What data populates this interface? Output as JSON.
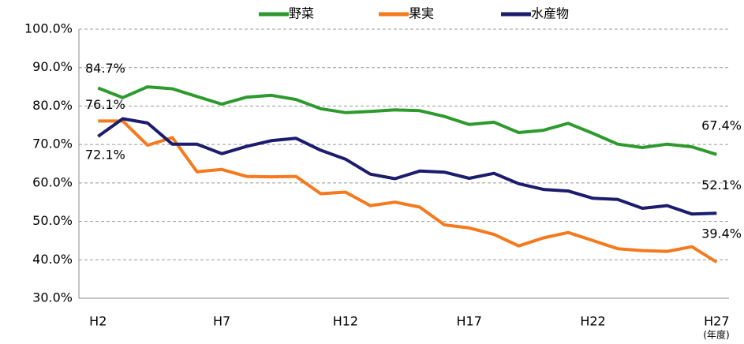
{
  "chart_data": {
    "type": "line",
    "categories": [
      "H2",
      null,
      null,
      null,
      null,
      "H7",
      null,
      null,
      null,
      null,
      "H12",
      null,
      null,
      null,
      null,
      "H17",
      null,
      null,
      null,
      null,
      "H22",
      null,
      null,
      null,
      null,
      "H27"
    ],
    "x_label": "(年度)",
    "ylim": [
      30,
      100
    ],
    "yticks": [
      {
        "value": 30,
        "label": "30.0%"
      },
      {
        "value": 40,
        "label": "40.0%"
      },
      {
        "value": 50,
        "label": "50.0%"
      },
      {
        "value": 60,
        "label": "60.0%"
      },
      {
        "value": 70,
        "label": "70.0%"
      },
      {
        "value": 80,
        "label": "80.0%"
      },
      {
        "value": 90,
        "label": "90.0%"
      },
      {
        "value": 100,
        "label": "100.0%"
      }
    ],
    "grid": true,
    "legend": "top",
    "series": [
      {
        "name": "野菜",
        "color": "#2e9a2e",
        "values": [
          84.7,
          82.2,
          85.0,
          84.5,
          82.5,
          80.5,
          82.3,
          82.8,
          81.7,
          79.3,
          78.3,
          78.6,
          79.0,
          78.8,
          77.3,
          75.2,
          75.8,
          73.1,
          73.7,
          75.5,
          72.9,
          70.1,
          69.2,
          70.1,
          69.4,
          67.4
        ],
        "value_labels": [
          "84.7%",
          null,
          null,
          null,
          null,
          null,
          null,
          null,
          null,
          null,
          null,
          null,
          null,
          null,
          null,
          null,
          null,
          null,
          null,
          null,
          null,
          null,
          null,
          null,
          null,
          "67.4%"
        ]
      },
      {
        "name": "果実",
        "color": "#f57a1e",
        "values": [
          76.1,
          76.1,
          69.8,
          71.8,
          62.9,
          63.5,
          61.7,
          61.6,
          61.7,
          57.2,
          57.6,
          54.1,
          55.0,
          53.7,
          49.1,
          48.3,
          46.6,
          43.6,
          45.7,
          47.1,
          45.0,
          42.9,
          42.4,
          42.2,
          43.4,
          39.4
        ],
        "value_labels": [
          "76.1%",
          null,
          null,
          null,
          null,
          null,
          null,
          null,
          null,
          null,
          null,
          null,
          null,
          null,
          null,
          null,
          null,
          null,
          null,
          null,
          null,
          null,
          null,
          null,
          null,
          "39.4%"
        ]
      },
      {
        "name": "水産物",
        "color": "#1c1c6e",
        "values": [
          72.1,
          76.7,
          75.6,
          70.1,
          70.1,
          67.6,
          69.5,
          71.0,
          71.6,
          68.5,
          66.2,
          62.3,
          61.1,
          63.1,
          62.8,
          61.2,
          62.5,
          59.8,
          58.3,
          57.9,
          56.0,
          55.7,
          53.4,
          54.1,
          51.9,
          52.1
        ],
        "value_labels": [
          "72.1%",
          null,
          null,
          null,
          null,
          null,
          null,
          null,
          null,
          null,
          null,
          null,
          null,
          null,
          null,
          null,
          null,
          null,
          null,
          null,
          null,
          null,
          null,
          null,
          null,
          "52.1%"
        ]
      }
    ]
  }
}
